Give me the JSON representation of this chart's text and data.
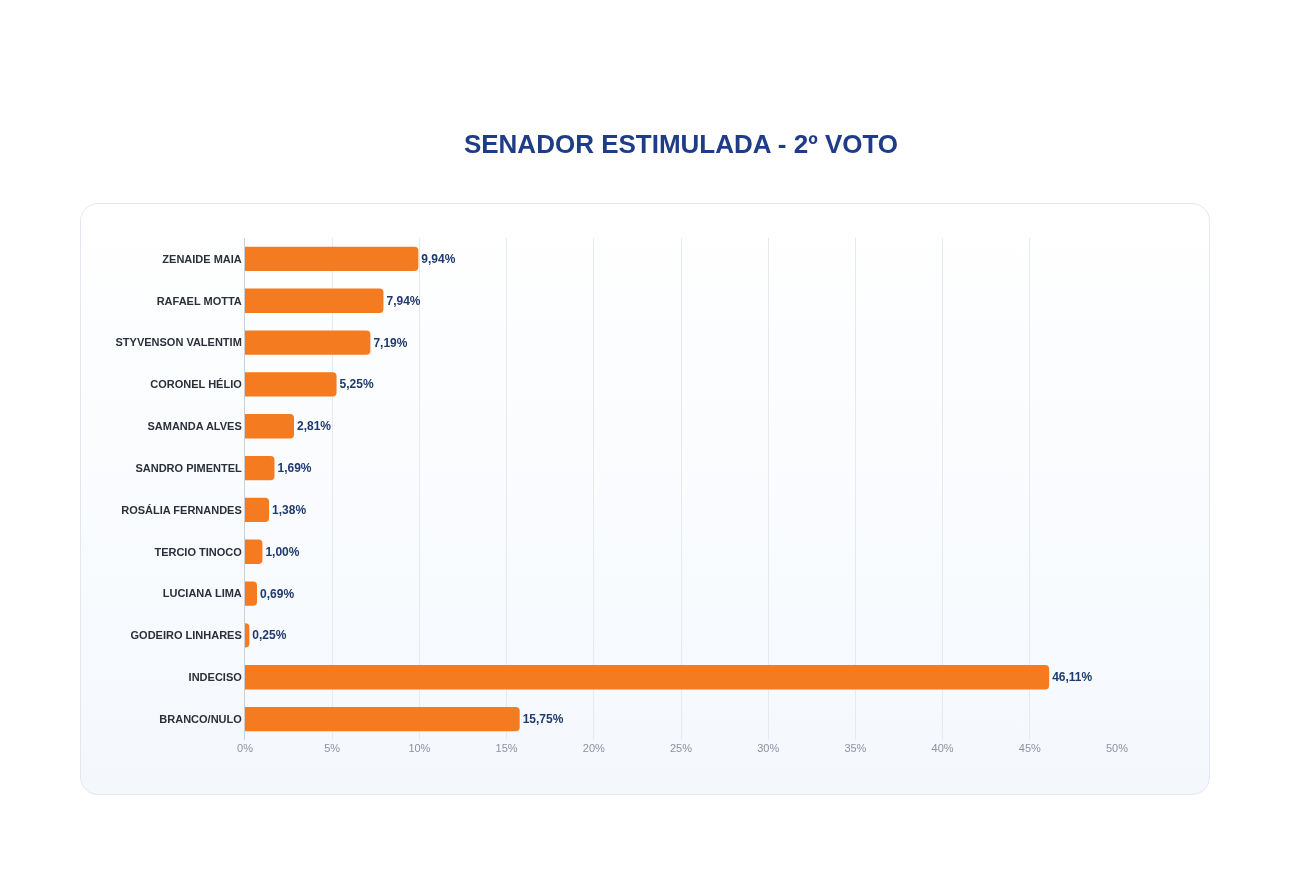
{
  "chart_data": {
    "type": "bar",
    "orientation": "horizontal",
    "title": "SENADOR ESTIMULADA - 2º VOTO",
    "categories": [
      "ZENAIDE MAIA",
      "RAFAEL MOTTA",
      "STYVENSON VALENTIM",
      "CORONEL HÉLIO",
      "SAMANDA ALVES",
      "SANDRO PIMENTEL",
      "ROSÁLIA FERNANDES",
      "TERCIO TINOCO",
      "LUCIANA LIMA",
      "GODEIRO LINHARES",
      "INDECISO",
      "BRANCO/NULO"
    ],
    "values": [
      9.94,
      7.94,
      7.19,
      5.25,
      2.81,
      1.69,
      1.38,
      1.0,
      0.69,
      0.25,
      46.11,
      15.75
    ],
    "value_labels": [
      "9,94%",
      "7,94%",
      "7,19%",
      "5,25%",
      "2,81%",
      "1,69%",
      "1,38%",
      "1,00%",
      "0,69%",
      "0,25%",
      "46,11%",
      "15,75%"
    ],
    "color": "#f47b20",
    "xlim": [
      0,
      50
    ],
    "xticks": [
      {
        "value": 0,
        "label": "0%"
      },
      {
        "value": 5,
        "label": "5%"
      },
      {
        "value": 10,
        "label": "10%"
      },
      {
        "value": 15,
        "label": "15%"
      },
      {
        "value": 20,
        "label": "20%"
      },
      {
        "value": 25,
        "label": "25%"
      },
      {
        "value": 30,
        "label": "30%"
      },
      {
        "value": 35,
        "label": "35%"
      },
      {
        "value": 40,
        "label": "40%"
      },
      {
        "value": 45,
        "label": "45%"
      },
      {
        "value": 50,
        "label": "50%"
      }
    ],
    "grid": "x"
  }
}
